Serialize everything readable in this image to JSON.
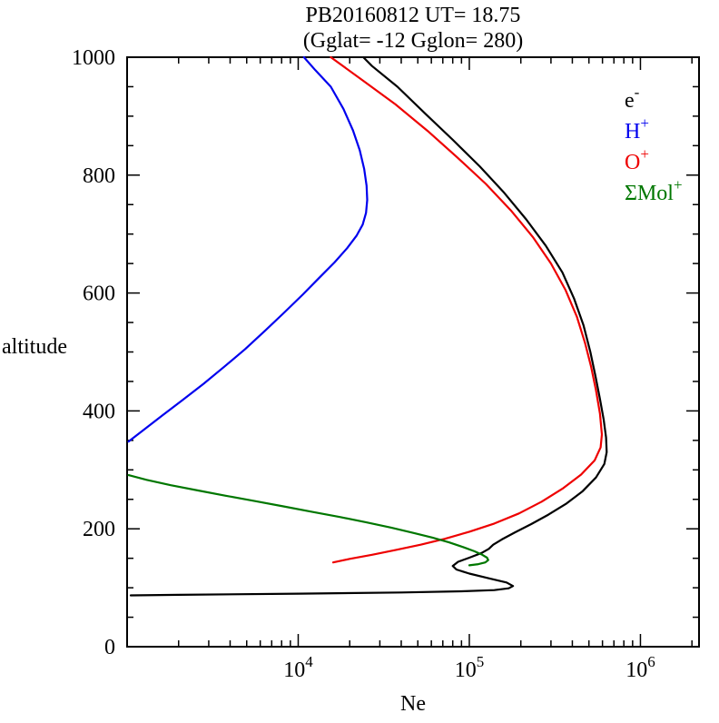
{
  "chart_data": {
    "type": "line",
    "title": "PB20160812   UT=  18.75",
    "subtitle": "(Gglat= -12   Gglon=  280)",
    "xlabel": "Ne",
    "ylabel": "altitude",
    "xscale": "log",
    "xlim": [
      1000,
      2200000
    ],
    "ylim": [
      0,
      1000
    ],
    "x_major_ticks": [
      {
        "value": 10000,
        "base": "10",
        "exp": "4"
      },
      {
        "value": 100000,
        "base": "10",
        "exp": "5"
      },
      {
        "value": 1000000,
        "base": "10",
        "exp": "6"
      }
    ],
    "y_major_ticks": [
      0,
      200,
      400,
      600,
      800,
      1000
    ],
    "y_minor_step": 50,
    "legend": [
      {
        "label": "e",
        "sup": "-",
        "color": "#000000"
      },
      {
        "label": "H",
        "sup": "+",
        "color": "#0000ee"
      },
      {
        "label": "O",
        "sup": "+",
        "color": "#ee0000"
      },
      {
        "label": "ΣMol",
        "sup": "+",
        "color": "#007700"
      }
    ],
    "series": [
      {
        "id": "electron",
        "name": "e-",
        "color": "#000000",
        "points": [
          [
            1050,
            87
          ],
          [
            2000,
            88
          ],
          [
            10000,
            90
          ],
          [
            40000,
            92
          ],
          [
            90000,
            94
          ],
          [
            140000,
            96
          ],
          [
            170000,
            99
          ],
          [
            180000,
            103
          ],
          [
            165000,
            109
          ],
          [
            130000,
            116
          ],
          [
            100000,
            124
          ],
          [
            84000,
            131
          ],
          [
            80000,
            137
          ],
          [
            86000,
            144
          ],
          [
            100000,
            151
          ],
          [
            118000,
            159
          ],
          [
            130000,
            166
          ],
          [
            138000,
            173
          ],
          [
            155000,
            182
          ],
          [
            185000,
            194
          ],
          [
            230000,
            208
          ],
          [
            290000,
            224
          ],
          [
            370000,
            243
          ],
          [
            460000,
            264
          ],
          [
            550000,
            287
          ],
          [
            615000,
            310
          ],
          [
            635000,
            330
          ],
          [
            630000,
            355
          ],
          [
            610000,
            385
          ],
          [
            580000,
            420
          ],
          [
            545000,
            460
          ],
          [
            510000,
            500
          ],
          [
            465000,
            545
          ],
          [
            410000,
            590
          ],
          [
            350000,
            635
          ],
          [
            280000,
            680
          ],
          [
            215000,
            725
          ],
          [
            160000,
            770
          ],
          [
            115000,
            815
          ],
          [
            80000,
            860
          ],
          [
            55000,
            905
          ],
          [
            38000,
            950
          ],
          [
            27000,
            985
          ],
          [
            24000,
            1000
          ]
        ]
      },
      {
        "id": "h-plus",
        "name": "H+",
        "color": "#0000ee",
        "points": [
          [
            1020,
            348
          ],
          [
            1250,
            368
          ],
          [
            1600,
            392
          ],
          [
            2100,
            418
          ],
          [
            2800,
            446
          ],
          [
            3700,
            475
          ],
          [
            4900,
            505
          ],
          [
            6400,
            536
          ],
          [
            8300,
            567
          ],
          [
            10600,
            597
          ],
          [
            13300,
            626
          ],
          [
            16300,
            652
          ],
          [
            19300,
            676
          ],
          [
            21900,
            697
          ],
          [
            23800,
            716
          ],
          [
            24900,
            736
          ],
          [
            25300,
            758
          ],
          [
            25100,
            782
          ],
          [
            24300,
            810
          ],
          [
            22900,
            842
          ],
          [
            20900,
            876
          ],
          [
            18400,
            912
          ],
          [
            15500,
            950
          ],
          [
            12600,
            978
          ],
          [
            10800,
            1000
          ]
        ]
      },
      {
        "id": "o-plus",
        "name": "O+",
        "color": "#ee0000",
        "points": [
          [
            16000,
            143
          ],
          [
            20000,
            149
          ],
          [
            27000,
            156
          ],
          [
            37000,
            164
          ],
          [
            52000,
            173
          ],
          [
            72000,
            183
          ],
          [
            100000,
            195
          ],
          [
            140000,
            209
          ],
          [
            195000,
            226
          ],
          [
            265000,
            246
          ],
          [
            350000,
            268
          ],
          [
            450000,
            292
          ],
          [
            540000,
            316
          ],
          [
            585000,
            338
          ],
          [
            595000,
            360
          ],
          [
            580000,
            395
          ],
          [
            550000,
            435
          ],
          [
            515000,
            475
          ],
          [
            475000,
            515
          ],
          [
            425000,
            560
          ],
          [
            365000,
            605
          ],
          [
            300000,
            650
          ],
          [
            235000,
            695
          ],
          [
            175000,
            740
          ],
          [
            125000,
            785
          ],
          [
            85000,
            830
          ],
          [
            57000,
            875
          ],
          [
            37000,
            920
          ],
          [
            24000,
            960
          ],
          [
            15500,
            1000
          ]
        ]
      },
      {
        "id": "mol-plus",
        "name": "SigmaMol+",
        "color": "#007700",
        "points": [
          [
            1020,
            291
          ],
          [
            1300,
            283
          ],
          [
            1800,
            274
          ],
          [
            2600,
            265
          ],
          [
            3800,
            256
          ],
          [
            5600,
            247
          ],
          [
            8200,
            238
          ],
          [
            12000,
            229
          ],
          [
            17500,
            220
          ],
          [
            25000,
            211
          ],
          [
            35000,
            202
          ],
          [
            47000,
            193
          ],
          [
            61000,
            185
          ],
          [
            76000,
            177
          ],
          [
            92000,
            169
          ],
          [
            107000,
            162
          ],
          [
            119000,
            156
          ],
          [
            127000,
            151
          ],
          [
            129000,
            147
          ],
          [
            124000,
            143
          ],
          [
            113000,
            140
          ],
          [
            100000,
            138
          ]
        ]
      }
    ]
  }
}
